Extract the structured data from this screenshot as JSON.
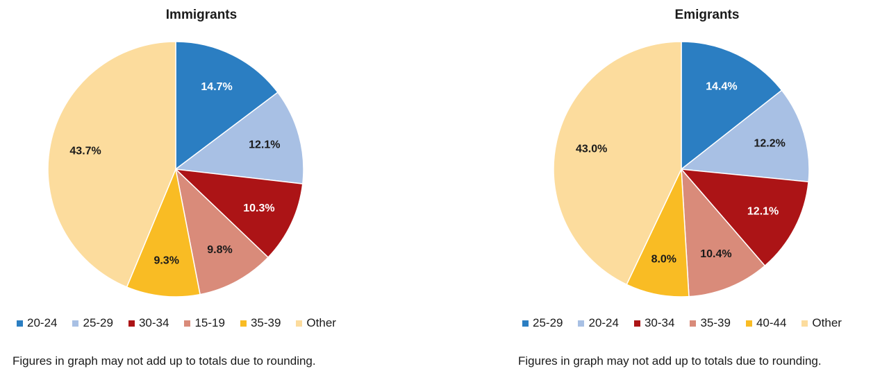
{
  "chart_data": [
    {
      "type": "pie",
      "title": "Immigrants",
      "slices": [
        {
          "label": "20-24",
          "value": 14.7,
          "display": "14.7%",
          "color": "#2b7ec2",
          "label_color": "#ffffff"
        },
        {
          "label": "25-29",
          "value": 12.1,
          "display": "12.1%",
          "color": "#a8c0e4",
          "label_color": "#1a1a1a"
        },
        {
          "label": "30-34",
          "value": 10.3,
          "display": "10.3%",
          "color": "#ac1416",
          "label_color": "#ffffff"
        },
        {
          "label": "15-19",
          "value": 9.8,
          "display": "9.8%",
          "color": "#d98b7a",
          "label_color": "#1a1a1a"
        },
        {
          "label": "35-39",
          "value": 9.3,
          "display": "9.3%",
          "color": "#f9bc24",
          "label_color": "#1a1a1a"
        },
        {
          "label": "Other",
          "value": 43.7,
          "display": "43.7%",
          "color": "#fcdc9d",
          "label_color": "#1a1a1a"
        }
      ],
      "legend_position": "bottom",
      "note": "Figures in graph may not add up to totals due to rounding."
    },
    {
      "type": "pie",
      "title": "Emigrants",
      "slices": [
        {
          "label": "25-29",
          "value": 14.4,
          "display": "14.4%",
          "color": "#2b7ec2",
          "label_color": "#ffffff"
        },
        {
          "label": "20-24",
          "value": 12.2,
          "display": "12.2%",
          "color": "#a8c0e4",
          "label_color": "#1a1a1a"
        },
        {
          "label": "30-34",
          "value": 12.1,
          "display": "12.1%",
          "color": "#ac1416",
          "label_color": "#ffffff"
        },
        {
          "label": "35-39",
          "value": 10.4,
          "display": "10.4%",
          "color": "#d98b7a",
          "label_color": "#1a1a1a"
        },
        {
          "label": "40-44",
          "value": 8.0,
          "display": "8.0%",
          "color": "#f9bc24",
          "label_color": "#1a1a1a"
        },
        {
          "label": "Other",
          "value": 43.0,
          "display": "43.0%",
          "color": "#fcdc9d",
          "label_color": "#1a1a1a"
        }
      ],
      "legend_position": "bottom",
      "note": "Figures in graph may not add up to totals due to rounding."
    }
  ]
}
